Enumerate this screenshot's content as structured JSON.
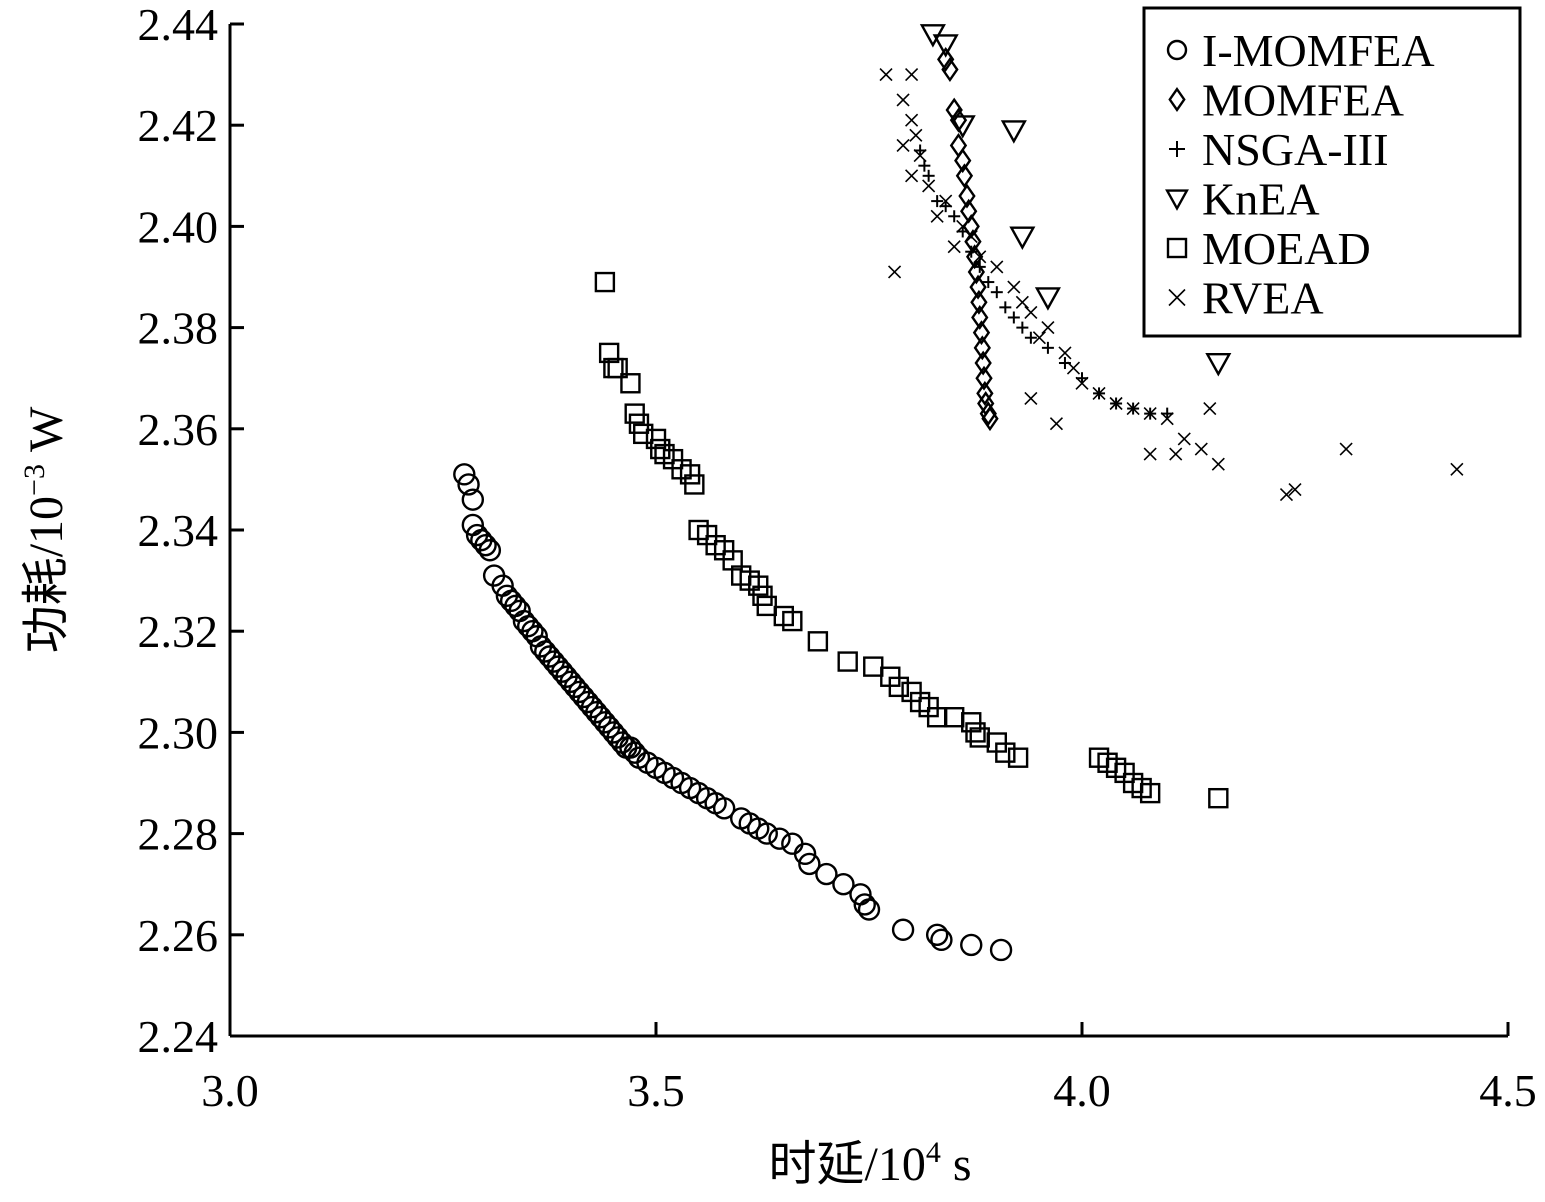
{
  "chart_data": {
    "type": "scatter",
    "title": "",
    "xlabel": "时延/10",
    "xlabel_exponent": "4",
    "xlabel_unit": " s",
    "ylabel": "功耗/10",
    "ylabel_exponent": "−3",
    "ylabel_unit": " W",
    "xlim": [
      3.0,
      4.5
    ],
    "ylim": [
      2.24,
      2.44
    ],
    "x_ticks": [
      "3.0",
      "3.5",
      "4.0",
      "4.5"
    ],
    "y_ticks": [
      "2.24",
      "2.26",
      "2.28",
      "2.30",
      "2.32",
      "2.34",
      "2.36",
      "2.38",
      "2.40",
      "2.42",
      "2.44"
    ],
    "grid": false,
    "legend_position": "top-right",
    "series": [
      {
        "name": "I-MOMFEA",
        "marker": "circle",
        "points": [
          [
            3.275,
            2.351
          ],
          [
            3.28,
            2.349
          ],
          [
            3.285,
            2.346
          ],
          [
            3.285,
            2.341
          ],
          [
            3.29,
            2.339
          ],
          [
            3.295,
            2.338
          ],
          [
            3.3,
            2.337
          ],
          [
            3.305,
            2.336
          ],
          [
            3.31,
            2.331
          ],
          [
            3.32,
            2.329
          ],
          [
            3.325,
            2.327
          ],
          [
            3.33,
            2.326
          ],
          [
            3.335,
            2.325
          ],
          [
            3.34,
            2.324
          ],
          [
            3.345,
            2.322
          ],
          [
            3.35,
            2.321
          ],
          [
            3.355,
            2.32
          ],
          [
            3.36,
            2.319
          ],
          [
            3.365,
            2.317
          ],
          [
            3.37,
            2.316
          ],
          [
            3.375,
            2.315
          ],
          [
            3.38,
            2.314
          ],
          [
            3.385,
            2.313
          ],
          [
            3.39,
            2.312
          ],
          [
            3.395,
            2.311
          ],
          [
            3.4,
            2.31
          ],
          [
            3.405,
            2.309
          ],
          [
            3.41,
            2.308
          ],
          [
            3.415,
            2.307
          ],
          [
            3.42,
            2.306
          ],
          [
            3.425,
            2.305
          ],
          [
            3.43,
            2.304
          ],
          [
            3.435,
            2.303
          ],
          [
            3.44,
            2.302
          ],
          [
            3.445,
            2.301
          ],
          [
            3.45,
            2.3
          ],
          [
            3.455,
            2.299
          ],
          [
            3.46,
            2.298
          ],
          [
            3.465,
            2.297
          ],
          [
            3.47,
            2.297
          ],
          [
            3.475,
            2.296
          ],
          [
            3.48,
            2.295
          ],
          [
            3.49,
            2.294
          ],
          [
            3.5,
            2.293
          ],
          [
            3.51,
            2.292
          ],
          [
            3.52,
            2.291
          ],
          [
            3.53,
            2.29
          ],
          [
            3.54,
            2.289
          ],
          [
            3.55,
            2.288
          ],
          [
            3.56,
            2.287
          ],
          [
            3.57,
            2.286
          ],
          [
            3.58,
            2.285
          ],
          [
            3.6,
            2.283
          ],
          [
            3.61,
            2.282
          ],
          [
            3.62,
            2.281
          ],
          [
            3.63,
            2.28
          ],
          [
            3.645,
            2.279
          ],
          [
            3.66,
            2.278
          ],
          [
            3.675,
            2.276
          ],
          [
            3.68,
            2.274
          ],
          [
            3.7,
            2.272
          ],
          [
            3.72,
            2.27
          ],
          [
            3.74,
            2.268
          ],
          [
            3.745,
            2.266
          ],
          [
            3.75,
            2.265
          ],
          [
            3.79,
            2.261
          ],
          [
            3.83,
            2.26
          ],
          [
            3.835,
            2.259
          ],
          [
            3.87,
            2.258
          ],
          [
            3.905,
            2.257
          ]
        ]
      },
      {
        "name": "MOMFEA",
        "marker": "diamond",
        "points": [
          [
            3.84,
            2.433
          ],
          [
            3.845,
            2.431
          ],
          [
            3.85,
            2.423
          ],
          [
            3.855,
            2.421
          ],
          [
            3.855,
            2.416
          ],
          [
            3.86,
            2.413
          ],
          [
            3.862,
            2.41
          ],
          [
            3.865,
            2.406
          ],
          [
            3.867,
            2.403
          ],
          [
            3.87,
            2.4
          ],
          [
            3.872,
            2.397
          ],
          [
            3.874,
            2.394
          ],
          [
            3.876,
            2.391
          ],
          [
            3.878,
            2.388
          ],
          [
            3.879,
            2.385
          ],
          [
            3.88,
            2.382
          ],
          [
            3.882,
            2.379
          ],
          [
            3.883,
            2.376
          ],
          [
            3.884,
            2.373
          ],
          [
            3.885,
            2.37
          ],
          [
            3.886,
            2.367
          ],
          [
            3.887,
            2.365
          ],
          [
            3.89,
            2.363
          ],
          [
            3.892,
            2.362
          ]
        ]
      },
      {
        "name": "NSGA-III",
        "marker": "plus",
        "points": [
          [
            3.81,
            2.415
          ],
          [
            3.815,
            2.412
          ],
          [
            3.82,
            2.41
          ],
          [
            3.83,
            2.405
          ],
          [
            3.84,
            2.404
          ],
          [
            3.85,
            2.402
          ],
          [
            3.86,
            2.399
          ],
          [
            3.87,
            2.395
          ],
          [
            3.88,
            2.392
          ],
          [
            3.89,
            2.389
          ],
          [
            3.9,
            2.387
          ],
          [
            3.91,
            2.384
          ],
          [
            3.92,
            2.382
          ],
          [
            3.93,
            2.38
          ],
          [
            3.94,
            2.378
          ],
          [
            3.96,
            2.376
          ],
          [
            3.98,
            2.373
          ],
          [
            4.0,
            2.37
          ],
          [
            4.02,
            2.367
          ],
          [
            4.04,
            2.365
          ],
          [
            4.06,
            2.364
          ],
          [
            4.08,
            2.363
          ],
          [
            4.1,
            2.363
          ]
        ]
      },
      {
        "name": "KnEA",
        "marker": "triangle-down",
        "points": [
          [
            3.825,
            2.438
          ],
          [
            3.84,
            2.436
          ],
          [
            3.86,
            2.42
          ],
          [
            3.92,
            2.419
          ],
          [
            3.93,
            2.398
          ],
          [
            3.96,
            2.386
          ],
          [
            4.16,
            2.373
          ]
        ]
      },
      {
        "name": "MOEAD",
        "marker": "square",
        "points": [
          [
            3.44,
            2.389
          ],
          [
            3.445,
            2.375
          ],
          [
            3.45,
            2.372
          ],
          [
            3.455,
            2.372
          ],
          [
            3.47,
            2.369
          ],
          [
            3.475,
            2.363
          ],
          [
            3.48,
            2.361
          ],
          [
            3.485,
            2.359
          ],
          [
            3.5,
            2.358
          ],
          [
            3.505,
            2.356
          ],
          [
            3.51,
            2.355
          ],
          [
            3.52,
            2.354
          ],
          [
            3.53,
            2.352
          ],
          [
            3.54,
            2.351
          ],
          [
            3.545,
            2.349
          ],
          [
            3.55,
            2.34
          ],
          [
            3.56,
            2.339
          ],
          [
            3.57,
            2.337
          ],
          [
            3.58,
            2.336
          ],
          [
            3.59,
            2.334
          ],
          [
            3.6,
            2.331
          ],
          [
            3.61,
            2.33
          ],
          [
            3.62,
            2.329
          ],
          [
            3.625,
            2.327
          ],
          [
            3.63,
            2.325
          ],
          [
            3.65,
            2.323
          ],
          [
            3.66,
            2.322
          ],
          [
            3.69,
            2.318
          ],
          [
            3.725,
            2.314
          ],
          [
            3.755,
            2.313
          ],
          [
            3.775,
            2.311
          ],
          [
            3.785,
            2.309
          ],
          [
            3.8,
            2.308
          ],
          [
            3.81,
            2.306
          ],
          [
            3.82,
            2.305
          ],
          [
            3.83,
            2.303
          ],
          [
            3.85,
            2.303
          ],
          [
            3.87,
            2.302
          ],
          [
            3.875,
            2.3
          ],
          [
            3.88,
            2.299
          ],
          [
            3.9,
            2.298
          ],
          [
            3.91,
            2.296
          ],
          [
            3.925,
            2.295
          ],
          [
            4.02,
            2.295
          ],
          [
            4.03,
            2.294
          ],
          [
            4.04,
            2.293
          ],
          [
            4.05,
            2.292
          ],
          [
            4.06,
            2.29
          ],
          [
            4.07,
            2.289
          ],
          [
            4.08,
            2.288
          ],
          [
            4.16,
            2.287
          ]
        ]
      },
      {
        "name": "RVEA",
        "marker": "x",
        "points": [
          [
            3.77,
            2.43
          ],
          [
            3.8,
            2.43
          ],
          [
            3.79,
            2.425
          ],
          [
            3.8,
            2.421
          ],
          [
            3.805,
            2.418
          ],
          [
            3.79,
            2.416
          ],
          [
            3.81,
            2.414
          ],
          [
            3.8,
            2.41
          ],
          [
            3.82,
            2.408
          ],
          [
            3.84,
            2.405
          ],
          [
            3.83,
            2.402
          ],
          [
            3.86,
            2.4
          ],
          [
            3.87,
            2.398
          ],
          [
            3.85,
            2.396
          ],
          [
            3.88,
            2.394
          ],
          [
            3.9,
            2.392
          ],
          [
            3.78,
            2.391
          ],
          [
            3.92,
            2.388
          ],
          [
            3.93,
            2.385
          ],
          [
            3.94,
            2.383
          ],
          [
            3.96,
            2.38
          ],
          [
            3.95,
            2.378
          ],
          [
            3.98,
            2.375
          ],
          [
            3.99,
            2.372
          ],
          [
            4.0,
            2.369
          ],
          [
            4.02,
            2.367
          ],
          [
            4.04,
            2.365
          ],
          [
            4.06,
            2.364
          ],
          [
            4.08,
            2.363
          ],
          [
            4.1,
            2.362
          ],
          [
            4.12,
            2.358
          ],
          [
            4.15,
            2.364
          ],
          [
            3.94,
            2.366
          ],
          [
            3.97,
            2.361
          ],
          [
            4.08,
            2.355
          ],
          [
            4.11,
            2.355
          ],
          [
            4.14,
            2.356
          ],
          [
            4.16,
            2.353
          ],
          [
            4.24,
            2.347
          ],
          [
            4.25,
            2.348
          ],
          [
            4.31,
            2.356
          ],
          [
            4.44,
            2.352
          ]
        ]
      }
    ]
  }
}
